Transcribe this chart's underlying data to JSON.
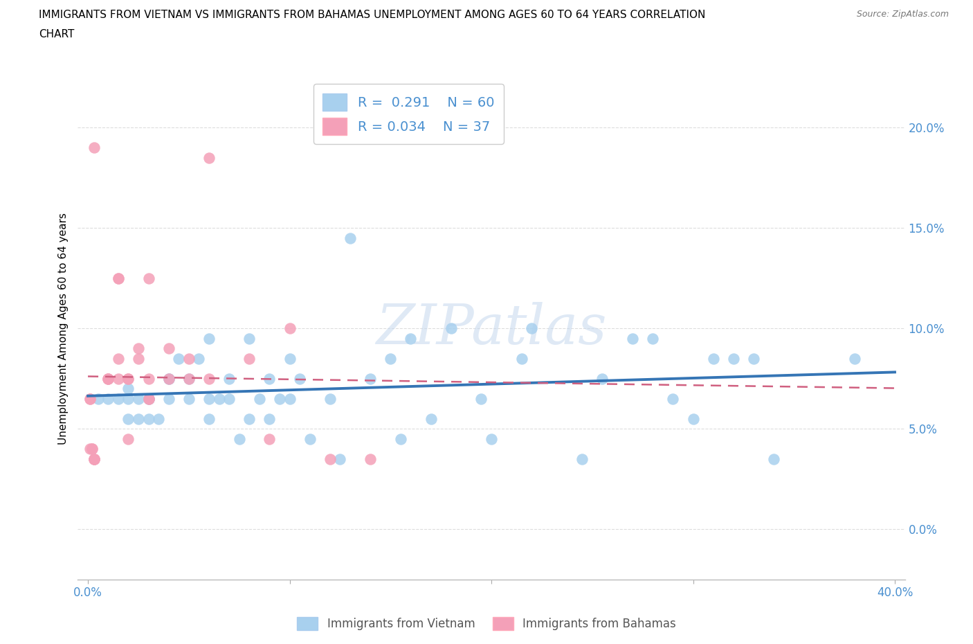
{
  "title_line1": "IMMIGRANTS FROM VIETNAM VS IMMIGRANTS FROM BAHAMAS UNEMPLOYMENT AMONG AGES 60 TO 64 YEARS CORRELATION",
  "title_line2": "CHART",
  "source_text": "Source: ZipAtlas.com",
  "ylabel": "Unemployment Among Ages 60 to 64 years",
  "xlabel_vietnam": "Immigrants from Vietnam",
  "xlabel_bahamas": "Immigrants from Bahamas",
  "xlim": [
    -0.005,
    0.405
  ],
  "ylim": [
    -0.025,
    0.225
  ],
  "yticks": [
    0.0,
    0.05,
    0.1,
    0.15,
    0.2
  ],
  "ytick_labels": [
    "0.0%",
    "5.0%",
    "10.0%",
    "15.0%",
    "20.0%"
  ],
  "xticks": [
    0.0,
    0.1,
    0.2,
    0.3,
    0.4
  ],
  "xtick_labels_bottom": [
    "0.0%",
    "",
    "",
    "",
    "40.0%"
  ],
  "R_vietnam": 0.291,
  "N_vietnam": 60,
  "R_bahamas": 0.034,
  "N_bahamas": 37,
  "color_vietnam": "#A8D0EE",
  "color_bahamas": "#F4A0B8",
  "line_color_vietnam": "#3575B5",
  "line_color_bahamas": "#D06080",
  "tick_color": "#4A90D0",
  "grid_color": "#DDDDDD",
  "background_color": "#FFFFFF",
  "watermark": "ZIPatlas",
  "vietnam_x": [
    0.005,
    0.01,
    0.015,
    0.02,
    0.02,
    0.02,
    0.025,
    0.025,
    0.03,
    0.03,
    0.03,
    0.035,
    0.04,
    0.04,
    0.04,
    0.045,
    0.05,
    0.05,
    0.055,
    0.06,
    0.06,
    0.06,
    0.065,
    0.07,
    0.07,
    0.075,
    0.08,
    0.08,
    0.085,
    0.09,
    0.09,
    0.095,
    0.1,
    0.1,
    0.105,
    0.11,
    0.12,
    0.125,
    0.13,
    0.14,
    0.15,
    0.155,
    0.16,
    0.17,
    0.18,
    0.195,
    0.2,
    0.215,
    0.22,
    0.245,
    0.255,
    0.27,
    0.28,
    0.29,
    0.3,
    0.31,
    0.32,
    0.33,
    0.34,
    0.38
  ],
  "vietnam_y": [
    0.065,
    0.065,
    0.065,
    0.07,
    0.065,
    0.055,
    0.065,
    0.055,
    0.065,
    0.065,
    0.055,
    0.055,
    0.075,
    0.075,
    0.065,
    0.085,
    0.065,
    0.075,
    0.085,
    0.055,
    0.065,
    0.095,
    0.065,
    0.065,
    0.075,
    0.045,
    0.055,
    0.095,
    0.065,
    0.055,
    0.075,
    0.065,
    0.065,
    0.085,
    0.075,
    0.045,
    0.065,
    0.035,
    0.145,
    0.075,
    0.085,
    0.045,
    0.095,
    0.055,
    0.1,
    0.065,
    0.045,
    0.085,
    0.1,
    0.035,
    0.075,
    0.095,
    0.095,
    0.065,
    0.055,
    0.085,
    0.085,
    0.085,
    0.035,
    0.085
  ],
  "bahamas_x": [
    0.001,
    0.001,
    0.001,
    0.002,
    0.002,
    0.003,
    0.003,
    0.003,
    0.003,
    0.003,
    0.01,
    0.01,
    0.01,
    0.015,
    0.015,
    0.015,
    0.015,
    0.02,
    0.02,
    0.02,
    0.025,
    0.025,
    0.03,
    0.03,
    0.03,
    0.03,
    0.04,
    0.04,
    0.05,
    0.05,
    0.06,
    0.06,
    0.08,
    0.09,
    0.1,
    0.12,
    0.14
  ],
  "bahamas_y": [
    0.065,
    0.065,
    0.04,
    0.04,
    0.04,
    0.035,
    0.035,
    0.035,
    0.035,
    0.19,
    0.075,
    0.075,
    0.075,
    0.075,
    0.125,
    0.085,
    0.125,
    0.045,
    0.075,
    0.075,
    0.085,
    0.09,
    0.065,
    0.065,
    0.075,
    0.125,
    0.075,
    0.09,
    0.075,
    0.085,
    0.075,
    0.185,
    0.085,
    0.045,
    0.1,
    0.035,
    0.035
  ]
}
